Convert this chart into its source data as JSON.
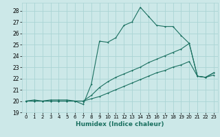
{
  "xlabel": "Humidex (Indice chaleur)",
  "bg_color": "#cce8e8",
  "grid_color": "#aad4d4",
  "line_color": "#1a7060",
  "xlim": [
    -0.5,
    23.5
  ],
  "ylim": [
    19,
    28.7
  ],
  "yticks": [
    19,
    20,
    21,
    22,
    23,
    24,
    25,
    26,
    27,
    28
  ],
  "xticks": [
    0,
    1,
    2,
    3,
    4,
    5,
    6,
    7,
    8,
    9,
    10,
    11,
    12,
    13,
    14,
    15,
    16,
    17,
    18,
    19,
    20,
    21,
    22,
    23
  ],
  "series1_x": [
    0,
    1,
    2,
    3,
    4,
    5,
    6,
    7,
    8,
    9,
    10,
    11,
    12,
    13,
    14,
    15,
    16,
    17,
    18,
    19,
    20,
    21,
    22,
    23
  ],
  "series1_y": [
    20.0,
    20.1,
    20.0,
    20.1,
    20.1,
    20.1,
    20.0,
    19.7,
    21.5,
    25.3,
    25.2,
    25.6,
    26.7,
    27.0,
    28.3,
    27.5,
    26.7,
    26.6,
    26.6,
    25.8,
    25.1,
    22.2,
    22.1,
    22.3
  ],
  "series2_x": [
    0,
    1,
    2,
    3,
    4,
    5,
    6,
    7,
    8,
    9,
    10,
    11,
    12,
    13,
    14,
    15,
    16,
    17,
    18,
    19,
    20,
    21,
    22,
    23
  ],
  "series2_y": [
    20.0,
    20.0,
    20.0,
    20.0,
    20.0,
    20.0,
    20.0,
    20.0,
    20.2,
    20.4,
    20.7,
    21.0,
    21.3,
    21.6,
    21.9,
    22.2,
    22.5,
    22.7,
    23.0,
    23.2,
    23.5,
    22.2,
    22.1,
    22.5
  ],
  "series3_x": [
    0,
    1,
    2,
    3,
    4,
    5,
    6,
    7,
    8,
    9,
    10,
    11,
    12,
    13,
    14,
    15,
    16,
    17,
    18,
    19,
    20,
    21,
    22,
    23
  ],
  "series3_y": [
    20.0,
    20.0,
    20.0,
    20.0,
    20.0,
    20.0,
    20.0,
    20.0,
    20.5,
    21.2,
    21.7,
    22.1,
    22.4,
    22.7,
    23.0,
    23.4,
    23.7,
    24.0,
    24.3,
    24.6,
    25.1,
    22.2,
    22.1,
    22.5
  ]
}
